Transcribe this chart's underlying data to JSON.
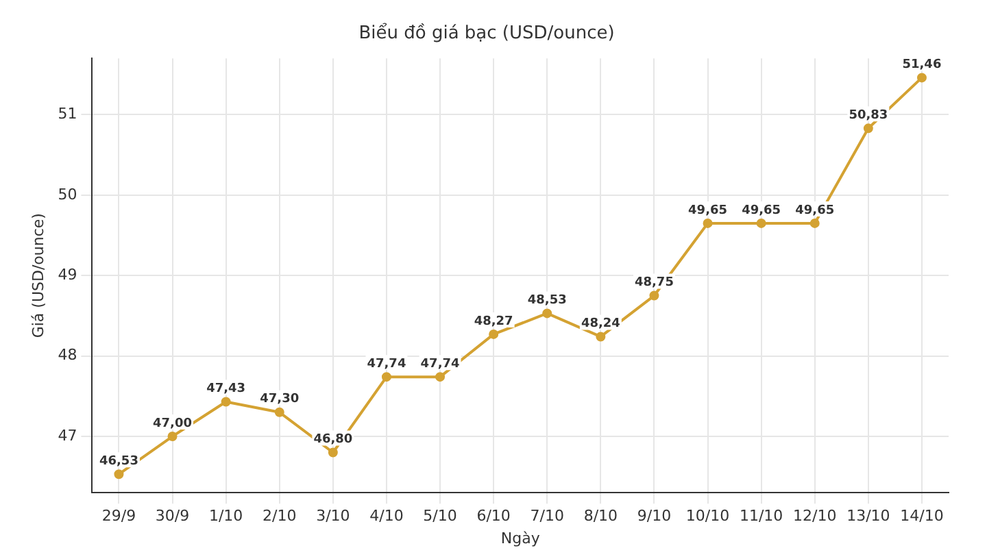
{
  "chart_data": {
    "type": "line",
    "title": "Biểu đồ giá bạc (USD/ounce)",
    "xlabel": "Ngày",
    "ylabel": "Giá (USD/ounce)",
    "categories": [
      "29/9",
      "30/9",
      "1/10",
      "2/10",
      "3/10",
      "4/10",
      "5/10",
      "6/10",
      "7/10",
      "8/10",
      "9/10",
      "10/10",
      "11/10",
      "12/10",
      "13/10",
      "14/10"
    ],
    "series": [
      {
        "color": "#d4a232",
        "values": [
          46.53,
          47.0,
          47.43,
          47.3,
          46.8,
          47.74,
          47.74,
          48.27,
          48.53,
          48.24,
          48.75,
          49.65,
          49.65,
          49.65,
          50.83,
          51.46
        ],
        "value_labels": [
          "46,53",
          "47,00",
          "47,43",
          "47,30",
          "46,80",
          "47,74",
          "47,74",
          "48,27",
          "48,53",
          "48,24",
          "48,75",
          "49,65",
          "49,65",
          "49,65",
          "50,83",
          "51,46"
        ]
      }
    ],
    "ylim": [
      46.3,
      51.7
    ],
    "yticks": [
      47,
      48,
      49,
      50,
      51
    ],
    "grid": true,
    "legend": false,
    "marker": "circle",
    "line_style": "solid"
  }
}
